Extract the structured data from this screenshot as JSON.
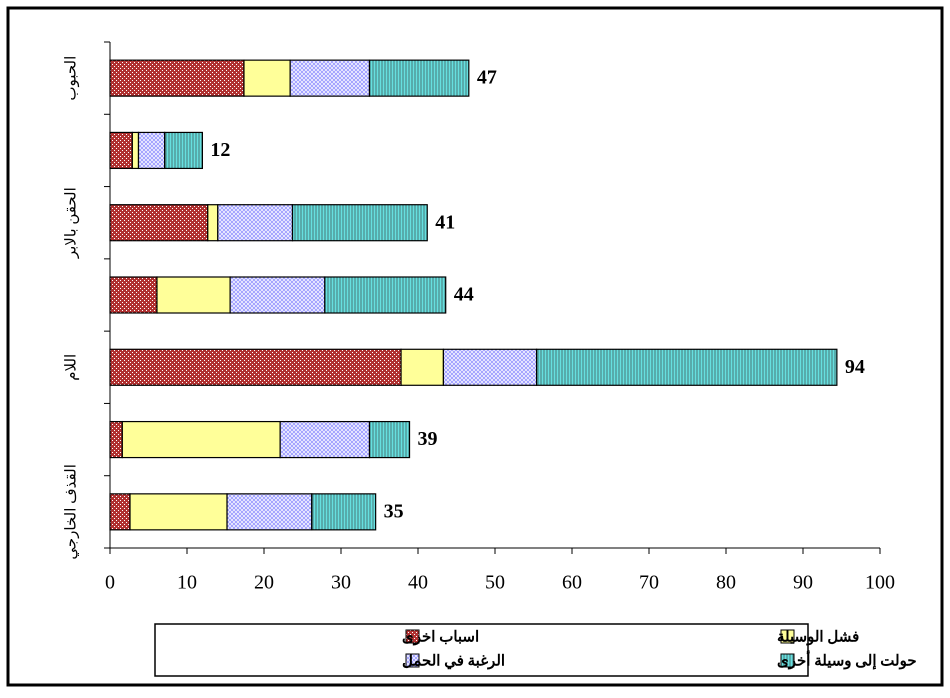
{
  "chart_data": {
    "type": "stacked-bar-horizontal",
    "categories": [
      "الحبوب",
      null,
      "الحقن بالابر",
      null,
      "اللام",
      null,
      "القذف الخارجي"
    ],
    "series": [
      {
        "name": "اسباب اخرى",
        "color": "#b03030",
        "pattern": "dots",
        "values": [
          17.4,
          2.9,
          12.7,
          6.1,
          37.8,
          1.6,
          2.6
        ]
      },
      {
        "name": "فشل الوسيلة",
        "color": "#ffff99",
        "pattern": "none",
        "values": [
          6.0,
          0.8,
          1.3,
          9.5,
          5.5,
          20.5,
          12.6
        ]
      },
      {
        "name": "الرغبة في الحمل",
        "color": "#9999ff",
        "pattern": "crosshatch",
        "values": [
          10.3,
          3.4,
          9.7,
          12.3,
          12.1,
          11.6,
          11.0
        ]
      },
      {
        "name": "حولت إلى وسيلة أخرى",
        "color": "#66e0e0",
        "pattern": "vlines",
        "values": [
          12.9,
          4.9,
          17.5,
          15.7,
          39.0,
          5.2,
          8.3
        ]
      }
    ],
    "totals": [
      47,
      12,
      41,
      44,
      94,
      39,
      35
    ],
    "xlim": [
      0,
      100
    ],
    "xticks": [
      0,
      10,
      20,
      30,
      40,
      50,
      60,
      70,
      80,
      90,
      100
    ]
  }
}
